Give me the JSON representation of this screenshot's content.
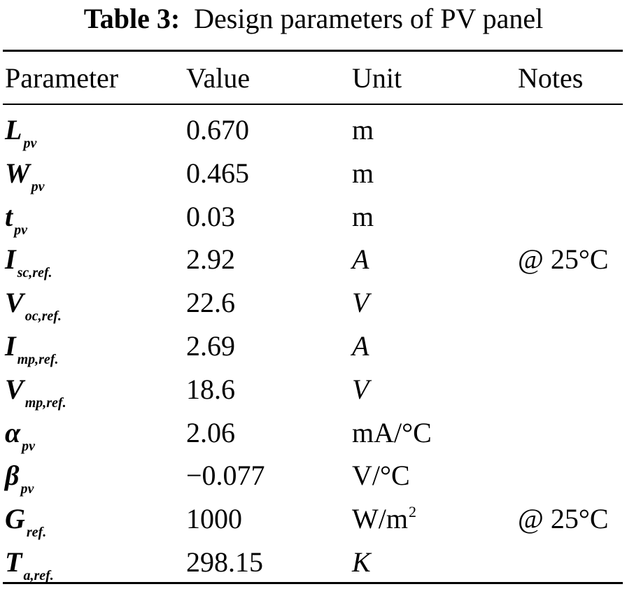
{
  "caption": {
    "label": "Table 3:",
    "text": "Design parameters of PV panel"
  },
  "table": {
    "headers": {
      "parameter": "Parameter",
      "value": "Value",
      "unit": "Unit",
      "notes": "Notes"
    },
    "rows": [
      {
        "symbol": "L",
        "subscript": "pv",
        "value": "0.670",
        "unit": "m",
        "unit_italic": false,
        "note": ""
      },
      {
        "symbol": "W",
        "subscript": "pv",
        "value": "0.465",
        "unit": "m",
        "unit_italic": false,
        "note": ""
      },
      {
        "symbol": "t",
        "subscript": "pv",
        "value": "0.03",
        "unit": "m",
        "unit_italic": false,
        "note": ""
      },
      {
        "symbol": "I",
        "subscript": "sc,ref.",
        "value": "2.92",
        "unit": "A",
        "unit_italic": true,
        "note": "@ 25°C"
      },
      {
        "symbol": "V",
        "subscript": "oc,ref.",
        "value": "22.6",
        "unit": "V",
        "unit_italic": true,
        "note": ""
      },
      {
        "symbol": "I",
        "subscript": "mp,ref.",
        "value": "2.69",
        "unit": "A",
        "unit_italic": true,
        "note": ""
      },
      {
        "symbol": "V",
        "subscript": "mp,ref.",
        "value": "18.6",
        "unit": "V",
        "unit_italic": true,
        "note": ""
      },
      {
        "symbol": "α",
        "subscript": "pv",
        "value": "2.06",
        "unit": "mA/°C",
        "unit_italic": false,
        "note": ""
      },
      {
        "symbol": "β",
        "subscript": "pv",
        "value": "−0.077",
        "unit": "V/°C",
        "unit_italic": false,
        "note": ""
      },
      {
        "symbol": "G",
        "subscript": "ref.",
        "value": "1000",
        "unit": "W/m",
        "unit_sup": "2",
        "unit_italic": false,
        "note": "@ 25°C"
      },
      {
        "symbol": "T",
        "subscript": "a,ref.",
        "value": "298.15",
        "unit": "K",
        "unit_italic": true,
        "note": ""
      }
    ]
  }
}
